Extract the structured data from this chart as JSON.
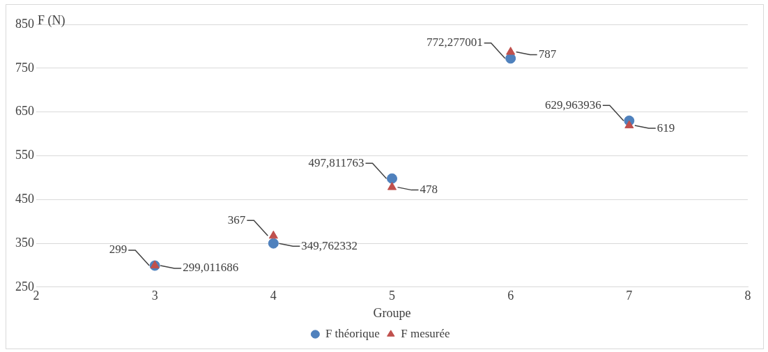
{
  "chart_data": {
    "type": "scatter",
    "xlabel": "Groupe",
    "ylabel": "F (N)",
    "xlim": [
      2,
      8
    ],
    "xticks": [
      2,
      3,
      4,
      5,
      6,
      7,
      8
    ],
    "ylim": [
      250,
      850
    ],
    "yticks": [
      250,
      350,
      450,
      550,
      650,
      750,
      850
    ],
    "grid": "y",
    "legend": "bottom",
    "series": [
      {
        "name": "F théorique",
        "color": "#4f81bd",
        "marker": "circle",
        "x": [
          3,
          4,
          5,
          6,
          7
        ],
        "values": [
          299.011686,
          349.762332,
          497.811763,
          772.277001,
          629.963936
        ],
        "value_labels": [
          "299,011686",
          "349,762332",
          "497,811763",
          "772,277001",
          "629,963936"
        ]
      },
      {
        "name": "F mesurée",
        "color": "#c0504d",
        "marker": "triangle",
        "x": [
          3,
          4,
          5,
          6,
          7
        ],
        "values": [
          299,
          367,
          478,
          787,
          619
        ],
        "value_labels": [
          "299",
          "367",
          "478",
          "787",
          "619"
        ]
      }
    ]
  }
}
